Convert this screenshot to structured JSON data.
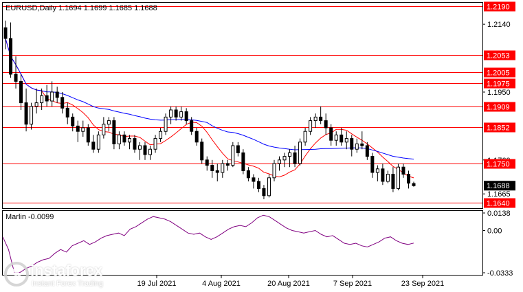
{
  "chart_data": {
    "type": "candlestick",
    "symbol_line": "EURUSD,Daily  1.1694 1.1699 1.1685 1.1688",
    "current_price_label": "1.1688",
    "price_ticks": [
      "1.2140",
      "1.1950",
      "1.1760",
      "1.1665"
    ],
    "levels": [
      {
        "label": "1.2190",
        "value": 1.219
      },
      {
        "label": "1.2053",
        "value": 1.2053
      },
      {
        "label": "1.2005",
        "value": 1.2005
      },
      {
        "label": "1.1975",
        "value": 1.1975
      },
      {
        "label": "1.1909",
        "value": 1.1909
      },
      {
        "label": "1.1852",
        "value": 1.1852
      },
      {
        "label": "1.1750",
        "value": 1.175
      },
      {
        "label": "1.1640",
        "value": 1.164
      }
    ],
    "x_tick_labels": [
      "19 Jul 2021",
      "4 Aug 2021",
      "20 Aug 2021",
      "7 Sep 2021",
      "23 Sep 2021"
    ],
    "price_range": [
      1.1625,
      1.22
    ],
    "candles": [
      [
        1.213,
        1.215,
        1.207,
        1.21
      ],
      [
        1.21,
        1.2145,
        1.199,
        1.2
      ],
      [
        1.2,
        1.205,
        1.196,
        1.198
      ],
      [
        1.198,
        1.2,
        1.19,
        1.192
      ],
      [
        1.192,
        1.196,
        1.184,
        1.186
      ],
      [
        1.186,
        1.192,
        1.1845,
        1.191
      ],
      [
        1.191,
        1.196,
        1.189,
        1.192
      ],
      [
        1.192,
        1.196,
        1.19,
        1.194
      ],
      [
        1.194,
        1.197,
        1.191,
        1.1925
      ],
      [
        1.1925,
        1.198,
        1.191,
        1.195
      ],
      [
        1.195,
        1.1965,
        1.192,
        1.1935
      ],
      [
        1.1935,
        1.195,
        1.189,
        1.1905
      ],
      [
        1.1905,
        1.192,
        1.186,
        1.188
      ],
      [
        1.188,
        1.189,
        1.184,
        1.1855
      ],
      [
        1.1855,
        1.187,
        1.181,
        1.184
      ],
      [
        1.184,
        1.187,
        1.1825,
        1.185
      ],
      [
        1.185,
        1.186,
        1.18,
        1.181
      ],
      [
        1.181,
        1.183,
        1.178,
        1.179
      ],
      [
        1.179,
        1.184,
        1.178,
        1.183
      ],
      [
        1.183,
        1.188,
        1.182,
        1.186
      ],
      [
        1.186,
        1.188,
        1.184,
        1.187
      ],
      [
        1.187,
        1.188,
        1.179,
        1.1805
      ],
      [
        1.1805,
        1.184,
        1.179,
        1.183
      ],
      [
        1.183,
        1.184,
        1.18,
        1.181
      ],
      [
        1.181,
        1.183,
        1.179,
        1.182
      ],
      [
        1.182,
        1.183,
        1.178,
        1.179
      ],
      [
        1.179,
        1.181,
        1.176,
        1.18
      ],
      [
        1.18,
        1.181,
        1.176,
        1.1775
      ],
      [
        1.1775,
        1.18,
        1.176,
        1.179
      ],
      [
        1.179,
        1.183,
        1.178,
        1.182
      ],
      [
        1.182,
        1.185,
        1.181,
        1.184
      ],
      [
        1.184,
        1.189,
        1.183,
        1.188
      ],
      [
        1.188,
        1.191,
        1.186,
        1.19
      ],
      [
        1.19,
        1.191,
        1.187,
        1.188
      ],
      [
        1.188,
        1.191,
        1.187,
        1.1895
      ],
      [
        1.1895,
        1.1905,
        1.186,
        1.187
      ],
      [
        1.187,
        1.188,
        1.183,
        1.184
      ],
      [
        1.184,
        1.185,
        1.18,
        1.181
      ],
      [
        1.181,
        1.182,
        1.175,
        1.176
      ],
      [
        1.176,
        1.177,
        1.173,
        1.1745
      ],
      [
        1.1745,
        1.176,
        1.171,
        1.173
      ],
      [
        1.173,
        1.175,
        1.17,
        1.1725
      ],
      [
        1.1725,
        1.176,
        1.171,
        1.175
      ],
      [
        1.175,
        1.176,
        1.173,
        1.1745
      ],
      [
        1.1745,
        1.181,
        1.174,
        1.18
      ],
      [
        1.18,
        1.181,
        1.177,
        1.178
      ],
      [
        1.178,
        1.179,
        1.172,
        1.173
      ],
      [
        1.173,
        1.174,
        1.17,
        1.171
      ],
      [
        1.171,
        1.172,
        1.168,
        1.17
      ],
      [
        1.17,
        1.171,
        1.167,
        1.168
      ],
      [
        1.168,
        1.169,
        1.165,
        1.166
      ],
      [
        1.166,
        1.172,
        1.1655,
        1.171
      ],
      [
        1.171,
        1.176,
        1.17,
        1.175
      ],
      [
        1.175,
        1.177,
        1.173,
        1.176
      ],
      [
        1.176,
        1.178,
        1.174,
        1.177
      ],
      [
        1.177,
        1.179,
        1.174,
        1.178
      ],
      [
        1.178,
        1.18,
        1.174,
        1.175
      ],
      [
        1.175,
        1.182,
        1.1745,
        1.181
      ],
      [
        1.181,
        1.185,
        1.18,
        1.184
      ],
      [
        1.184,
        1.188,
        1.183,
        1.187
      ],
      [
        1.187,
        1.189,
        1.185,
        1.188
      ],
      [
        1.188,
        1.191,
        1.186,
        1.187
      ],
      [
        1.187,
        1.189,
        1.183,
        1.185
      ],
      [
        1.185,
        1.186,
        1.18,
        1.1815
      ],
      [
        1.1815,
        1.184,
        1.18,
        1.183
      ],
      [
        1.183,
        1.185,
        1.18,
        1.181
      ],
      [
        1.181,
        1.184,
        1.179,
        1.182
      ],
      [
        1.182,
        1.183,
        1.177,
        1.179
      ],
      [
        1.179,
        1.182,
        1.178,
        1.1805
      ],
      [
        1.1805,
        1.184,
        1.179,
        1.18
      ],
      [
        1.18,
        1.181,
        1.176,
        1.177
      ],
      [
        1.177,
        1.178,
        1.171,
        1.1725
      ],
      [
        1.1725,
        1.1745,
        1.17,
        1.1735
      ],
      [
        1.1735,
        1.175,
        1.169,
        1.17
      ],
      [
        1.17,
        1.173,
        1.1695,
        1.172
      ],
      [
        1.172,
        1.174,
        1.167,
        1.168
      ],
      [
        1.168,
        1.175,
        1.1675,
        1.174
      ],
      [
        1.174,
        1.175,
        1.171,
        1.172
      ],
      [
        1.172,
        1.173,
        1.168,
        1.1695
      ],
      [
        1.1694,
        1.1699,
        1.1685,
        1.1688
      ]
    ],
    "indicators": [
      {
        "name": "",
        "color": "#ff0000"
      },
      {
        "name": "",
        "color": "#0000ff"
      }
    ],
    "oscillator": {
      "title": "Marlin -0.0099",
      "ticks": [
        "0.0138",
        "0.00",
        "-0.0333"
      ],
      "range": [
        -0.0333,
        0.0138
      ],
      "values": [
        -0.005,
        -0.015,
        -0.033,
        -0.033,
        -0.03,
        -0.028,
        -0.025,
        -0.023,
        -0.022,
        -0.018,
        -0.015,
        -0.017,
        -0.012,
        -0.01,
        -0.008,
        -0.011,
        -0.009,
        -0.006,
        -0.004,
        -0.003,
        -0.002,
        -0.004,
        0.001,
        0.003,
        0.006,
        0.009,
        0.011,
        0.01,
        0.009,
        0.007,
        0.004,
        0.001,
        -0.002,
        -0.003,
        -0.002,
        -0.005,
        -0.007,
        -0.005,
        -0.002,
        0.001,
        0.003,
        0.004,
        0.003,
        0.006,
        0.01,
        0.012,
        0.011,
        0.008,
        0.005,
        0.002,
        0.0,
        -0.001,
        -0.002,
        -0.001,
        0.0,
        -0.003,
        -0.005,
        -0.004,
        -0.007,
        -0.01,
        -0.011,
        -0.01,
        -0.012,
        -0.013,
        -0.011,
        -0.009,
        -0.006,
        -0.005,
        -0.008,
        -0.01,
        -0.011,
        -0.0099
      ]
    },
    "colors": {
      "level_line": "#ff0000",
      "level_label_bg": "#ff0000",
      "level_label_text": "#ffffff",
      "current_price_bg": "#000000",
      "current_price_text": "#ffffff",
      "oscillator_line": "#800080",
      "candle": "#000000",
      "bull_fill": "#ffffff",
      "bear_fill": "#000000"
    }
  },
  "watermark": {
    "brand": "instaforex",
    "tagline": "Instant Forex Trading"
  }
}
